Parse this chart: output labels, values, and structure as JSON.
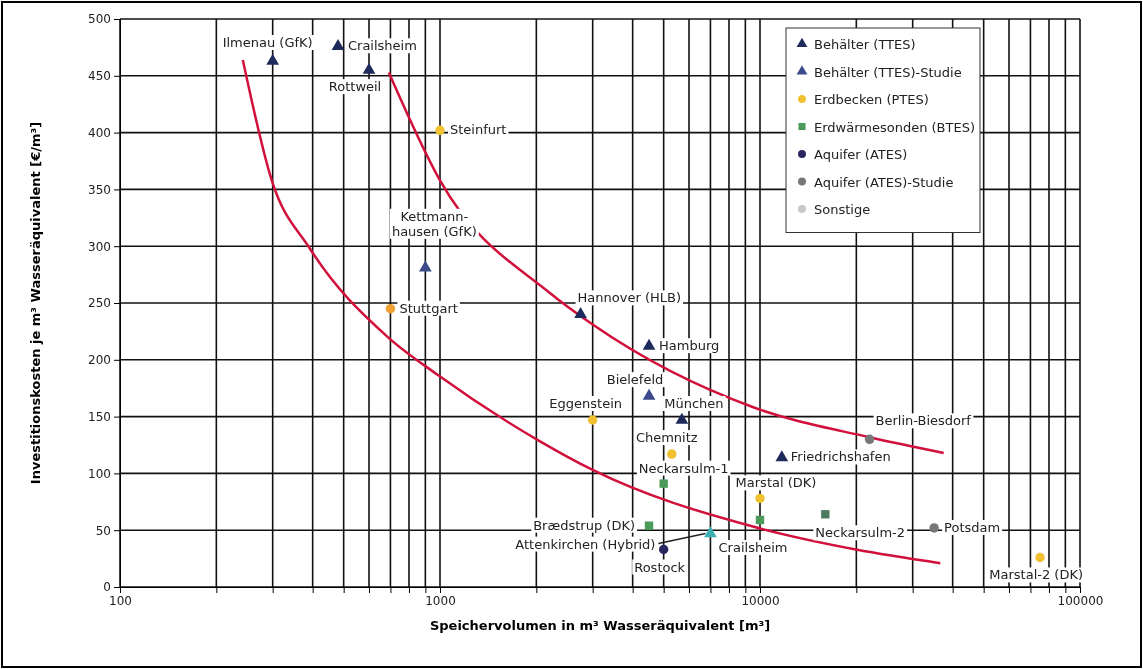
{
  "chart_data": {
    "type": "scatter",
    "xlabel": "Speichervolumen in m³ Wasseräquivalent [m³]",
    "ylabel": "Investitionskosten je m³ Wasseräquivalent [€/m³]",
    "log": "x",
    "xlim": [
      100,
      100000
    ],
    "ylim": [
      0,
      500
    ],
    "xticks": [
      100,
      {
        "value": 200,
        "label": null
      },
      {
        "value": 300,
        "label": null
      },
      {
        "value": 400,
        "label": null
      },
      {
        "value": 500,
        "label": null
      },
      {
        "value": 600,
        "label": null
      },
      {
        "value": 700,
        "label": null
      },
      {
        "value": 800,
        "label": null
      },
      {
        "value": 900,
        "label": null
      },
      1000,
      {
        "value": 2000,
        "label": null
      },
      {
        "value": 3000,
        "label": null
      },
      {
        "value": 4000,
        "label": null
      },
      {
        "value": 5000,
        "label": null
      },
      {
        "value": 6000,
        "label": null
      },
      {
        "value": 7000,
        "label": null
      },
      {
        "value": 8000,
        "label": null
      },
      {
        "value": 9000,
        "label": null
      },
      10000,
      {
        "value": 20000,
        "label": null
      },
      {
        "value": 30000,
        "label": null
      },
      {
        "value": 40000,
        "label": null
      },
      {
        "value": 50000,
        "label": null
      },
      {
        "value": 60000,
        "label": null
      },
      {
        "value": 70000,
        "label": null
      },
      {
        "value": 80000,
        "label": null
      },
      {
        "value": 90000,
        "label": null
      },
      100000
    ],
    "yticks": [
      0,
      50,
      100,
      150,
      200,
      250,
      300,
      350,
      400,
      450,
      500
    ],
    "grid": true,
    "legend": "top right",
    "series": [
      {
        "type": "line",
        "color": "#d2103c",
        "x": [
          242,
          298,
          392,
          687,
          980,
          2060,
          3000,
          9570,
          19950,
          36600
        ],
        "values": [
          464,
          358,
          298,
          220,
          187,
          128,
          103,
          53,
          33,
          21
        ]
      },
      {
        "type": "line",
        "color": "#d2103c",
        "x": [
          692,
          1000,
          2200,
          3000,
          9570,
          21800,
          37500
        ],
        "values": [
          453,
          358,
          259,
          231,
          158,
          132,
          118
        ]
      },
      {
        "name": "Behälter (TTES)",
        "marker": "triangle",
        "color": "#1f2a5c",
        "x": [
          300,
          480,
          600,
          2750,
          4500,
          5700,
          11700
        ],
        "values": [
          463,
          476,
          455,
          240,
          212,
          147,
          114
        ]
      },
      {
        "name": "Behälter (TTES)-Studie",
        "marker": "triangle",
        "color": "#3a4a8a",
        "colors": [
          "#3a4a8a",
          "#3a4a8a",
          "#3ab0b0"
        ],
        "x": [
          900,
          4500,
          7000
        ],
        "values": [
          281,
          168,
          47
        ]
      },
      {
        "name": "Erdbecken (PTES)",
        "marker": "circle",
        "color": "#f0c030",
        "colors": [
          "#f0c030",
          "#f0a030",
          "#f0c030",
          "#f0c030",
          "#f0c030",
          "#f0c030"
        ],
        "x": [
          1000,
          700,
          3000,
          5300,
          10000,
          75000
        ],
        "values": [
          402,
          245,
          147,
          117,
          78,
          26
        ]
      },
      {
        "name": "Erdwärmesonden (BTES)",
        "marker": "square",
        "color": "#4a9a5a",
        "colors": [
          "#4a9a5a",
          "#4a9a5a",
          "#4a9a5a",
          "#4a7a5a"
        ],
        "x": [
          5000,
          4500,
          10000,
          16000
        ],
        "values": [
          91,
          54,
          59,
          64
        ]
      },
      {
        "name": "Aquifer (ATES)",
        "marker": "circle",
        "color": "#2a2660",
        "x": [
          5000
        ],
        "values": [
          33
        ]
      },
      {
        "name": "Aquifer (ATES)-Studie",
        "marker": "circle",
        "color": "#777777",
        "x": [
          22000,
          35000
        ],
        "values": [
          130,
          52
        ]
      },
      {
        "name": "Sonstige",
        "marker": "circle",
        "color": "#c8c8c8"
      }
    ],
    "annotations": [
      {
        "text": "Ilmenau (GfK)",
        "x": 300,
        "y": 463
      },
      {
        "text": "Crailsheim",
        "x": 480,
        "y": 476
      },
      {
        "text": "Rottweil",
        "x": 600,
        "y": 455
      },
      {
        "text": "Steinfurt",
        "x": 1000,
        "y": 402
      },
      {
        "text": "Kettmann-\nhausen (GfK)",
        "x": 900,
        "y": 281
      },
      {
        "text": "Stuttgart",
        "x": 700,
        "y": 245
      },
      {
        "text": "Hannover (HLB)",
        "x": 2750,
        "y": 240
      },
      {
        "text": "Hamburg",
        "x": 4500,
        "y": 212
      },
      {
        "text": "Bielefeld",
        "x": 4500,
        "y": 168
      },
      {
        "text": "München",
        "x": 5700,
        "y": 147
      },
      {
        "text": "Friedrichshafen",
        "x": 11700,
        "y": 114
      },
      {
        "text": "Eggenstein",
        "x": 3000,
        "y": 147
      },
      {
        "text": "Chemnitz",
        "x": 5300,
        "y": 117
      },
      {
        "text": "Marstal (DK)",
        "x": 10000,
        "y": 78
      },
      {
        "text": "Marstal-2 (DK)",
        "x": 75000,
        "y": 26
      },
      {
        "text": "Neckarsulm-1",
        "x": 5000,
        "y": 91
      },
      {
        "text": "Brædstrup (DK)",
        "x": 4500,
        "y": 54
      },
      {
        "text": "Attenkirchen (Hybrid)",
        "x": 7000,
        "y": 47
      },
      {
        "text": "Crailsheim",
        "x": 10000,
        "y": 59
      },
      {
        "text": "Rostock",
        "x": 5000,
        "y": 33
      },
      {
        "text": "Neckarsulm-2",
        "x": 16000,
        "y": 64
      },
      {
        "text": "Berlin-Biesdorf",
        "x": 22000,
        "y": 130
      },
      {
        "text": "Potsdam",
        "x": 35000,
        "y": 52
      }
    ]
  }
}
